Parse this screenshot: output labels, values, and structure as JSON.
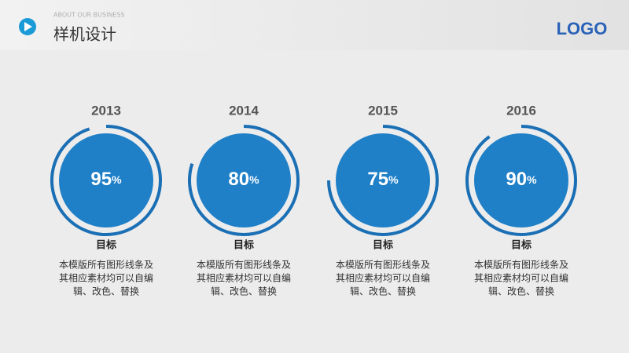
{
  "header": {
    "subtitle": "ABOUT OUR BUSINESS",
    "title": "样机设计",
    "logo": "LOGO"
  },
  "unit": "%",
  "items": [
    {
      "year": "2013",
      "value": 95,
      "label": "目标",
      "description": [
        "本模版所有图形线条及",
        "其相应素材均可以自编",
        "辑、改色、替换"
      ]
    },
    {
      "year": "2014",
      "value": 80,
      "label": "目标",
      "description": [
        "本模版所有图形线条及",
        "其相应素材均可以自编",
        "辑、改色、替换"
      ]
    },
    {
      "year": "2015",
      "value": 75,
      "label": "目标",
      "description": [
        "本模版所有图形线条及",
        "其相应素材均可以自编",
        "辑、改色、替换"
      ]
    },
    {
      "year": "2016",
      "value": 90,
      "label": "目标",
      "description": [
        "本模版所有图形线条及",
        "其相应素材均可以自编",
        "辑、改色、替换"
      ]
    }
  ]
}
